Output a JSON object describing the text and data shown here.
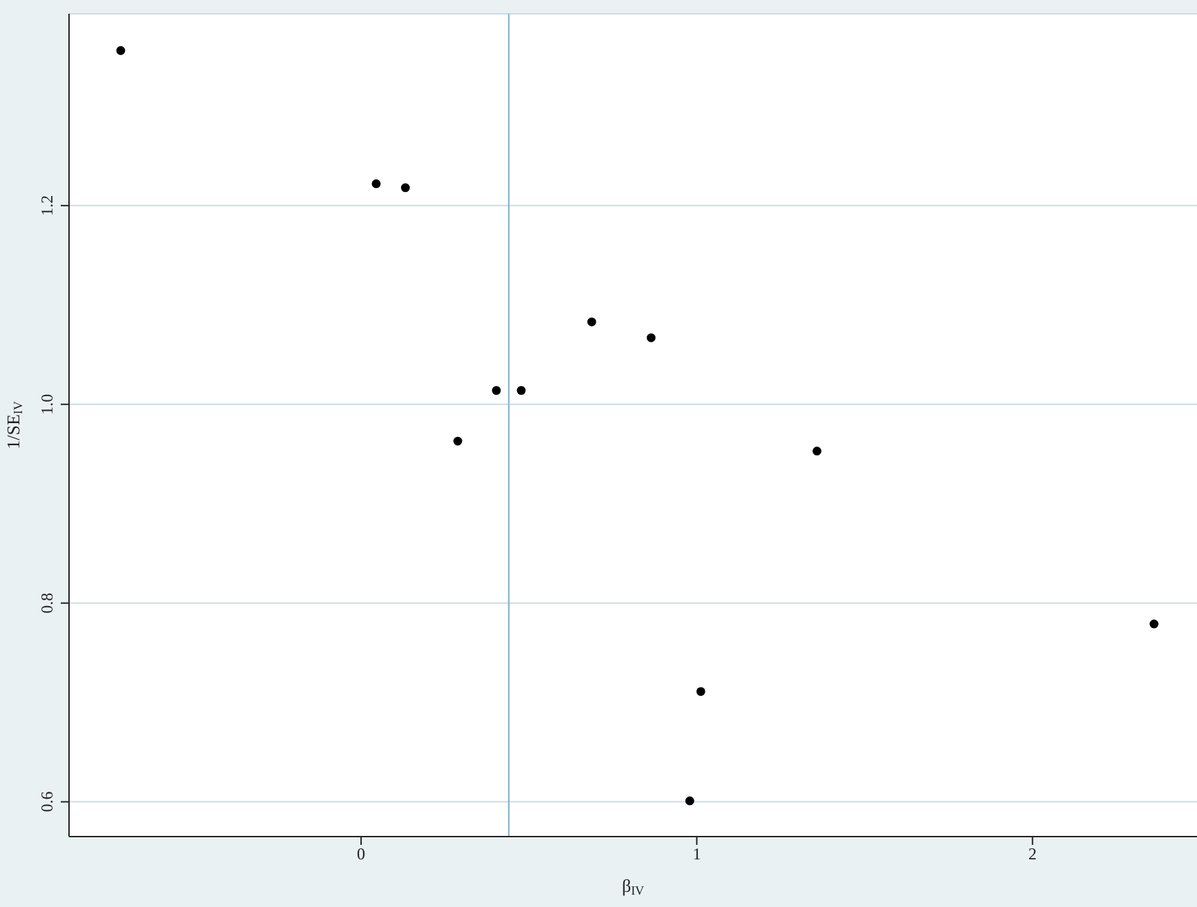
{
  "chart_data": {
    "type": "scatter",
    "xlabel": "β$_{IV}$",
    "ylabel": "1/SE$_{IV}$",
    "x": [
      -0.716,
      0.045,
      0.132,
      0.288,
      0.403,
      0.477,
      0.687,
      0.864,
      1.358,
      2.362,
      1.012,
      0.979
    ],
    "series": [
      {
        "color": "#000000",
        "values": [
          1.356,
          1.222,
          1.218,
          0.963,
          1.014,
          1.014,
          1.083,
          1.067,
          0.953,
          0.779,
          0.711,
          0.601
        ]
      }
    ],
    "xlim": [
      -0.87,
      2.49
    ],
    "ylim": [
      0.565,
      1.393
    ],
    "xticks": [
      0,
      1,
      2
    ],
    "yticks": [
      0.6,
      0.8,
      {
        "value": 1,
        "label": "1.0"
      },
      1.2
    ],
    "ref_lines": [
      {
        "axis": "x",
        "value": 0.44,
        "color": "#8fb8cc"
      }
    ],
    "grid": "y",
    "marker": "circle"
  }
}
